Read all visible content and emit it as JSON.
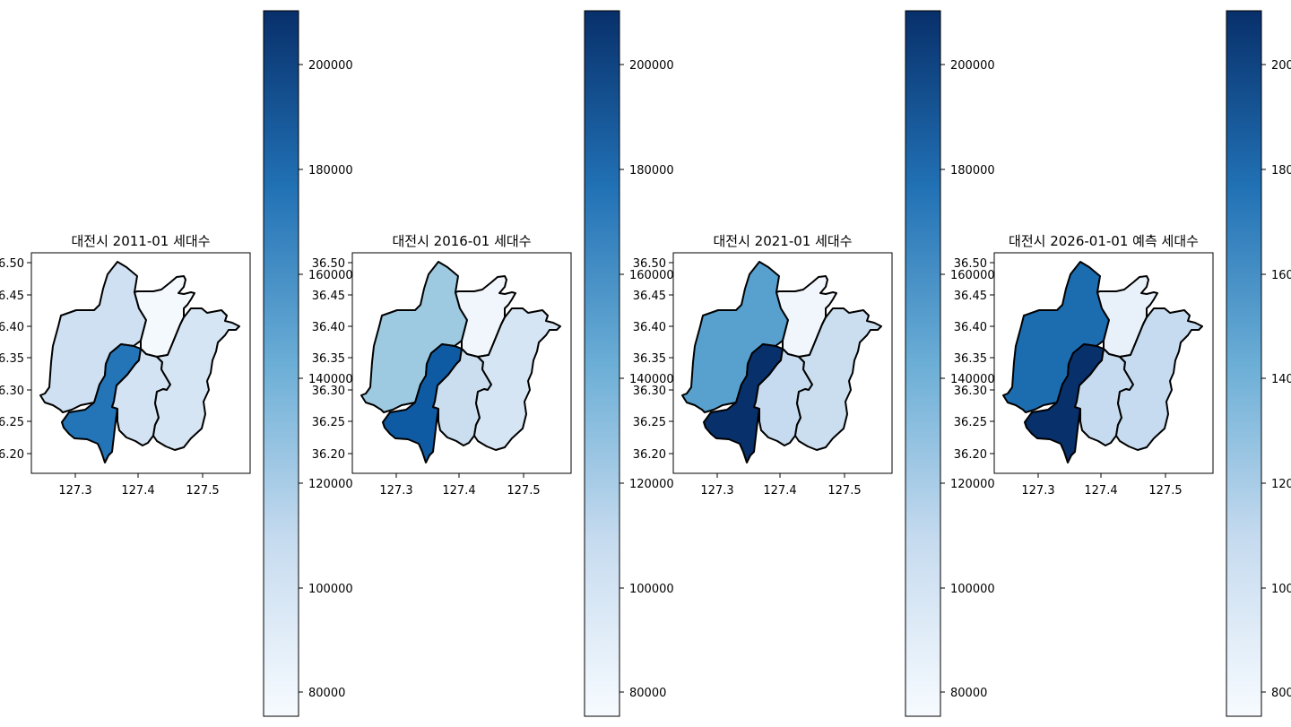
{
  "panels": [
    {
      "title": "대전시 2011-01 세대수",
      "district_fills": {
        "north": "#cfe0f2",
        "east_top": "#f4f9fe",
        "seo": "#2474b8",
        "yuseong": "#d3e3f3",
        "east": "#d6e5f4"
      }
    },
    {
      "title": "대전시 2016-01 세대수",
      "district_fills": {
        "north": "#9ecae1",
        "east_top": "#f0f6fc",
        "seo": "#0f5ba3",
        "yuseong": "#cadef0",
        "east": "#d6e5f4"
      }
    },
    {
      "title": "대전시 2021-01 세대수",
      "district_fills": {
        "north": "#58a1cf",
        "east_top": "#f0f6fc",
        "seo": "#08306b",
        "yuseong": "#c6dbef",
        "east": "#cadef0"
      }
    },
    {
      "title": "대전시 2026-01-01 예측 세대수",
      "district_fills": {
        "north": "#1c6cb0",
        "east_top": "#e8f1fa",
        "seo": "#08306b",
        "yuseong": "#c6dbef",
        "east": "#c6dbef"
      }
    }
  ],
  "x_ticks": [
    "127.3",
    "127.4",
    "127.5"
  ],
  "y_ticks": [
    "36.50",
    "36.45",
    "36.40",
    "36.35",
    "36.30",
    "36.25",
    "36.20"
  ],
  "colorbar": {
    "ticks": [
      "200000",
      "180000",
      "160000",
      "140000",
      "120000",
      "100000",
      "80000"
    ],
    "colormap": "Blues",
    "color_low": "#f7fbff",
    "color_mid": "#6baed6",
    "color_high": "#08306b"
  }
}
